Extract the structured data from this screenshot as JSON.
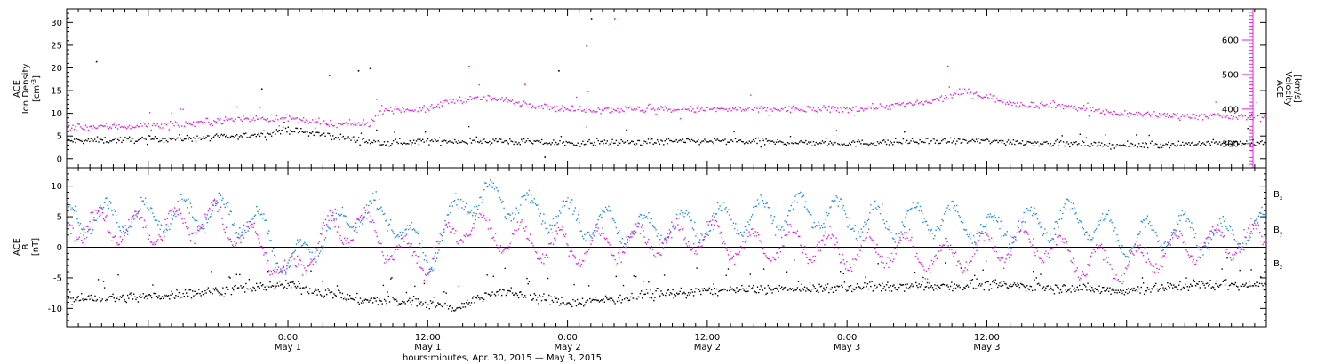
{
  "colors": {
    "black": "#000000",
    "magenta": "#e020e0",
    "blue": "#1e88e5"
  },
  "x_axis": {
    "ticks": [
      {
        "time": "0:00",
        "day": "May 1"
      },
      {
        "time": "12:00",
        "day": "May 1"
      },
      {
        "time": "0:00",
        "day": "May 2"
      },
      {
        "time": "12:00",
        "day": "May 2"
      },
      {
        "time": "0:00",
        "day": "May 3"
      },
      {
        "time": "12:00",
        "day": "May 3"
      }
    ],
    "title": "hours:minutes, Apr. 30, 2015 — May  3, 2015"
  },
  "chart_data": [
    {
      "type": "scatter",
      "panel": "top",
      "xlim_hours": [
        -19,
        84
      ],
      "x_unit": "hours since 0:00 May 1, 2015",
      "left_axis": {
        "label_line1": "ACE",
        "label_line2": "Ion Density",
        "label_line3": "[cm",
        "label_sup": "-3",
        "label_end": "]",
        "ylim": [
          -2,
          33
        ],
        "ticks": [
          "0",
          "5",
          "10",
          "15",
          "20",
          "25",
          "30"
        ]
      },
      "right_axis": {
        "label_line1": "ACE",
        "label_line2": "Velocity",
        "label_line3": "[km/s]",
        "ylim": [
          230,
          690
        ],
        "ticks": [
          "300",
          "400",
          "500",
          "600"
        ]
      },
      "series": [
        {
          "color": "black",
          "axis": "left",
          "anchors_x": [
            -19,
            -10,
            -4,
            0,
            4,
            8,
            12,
            18,
            24,
            36,
            48,
            56,
            60,
            66,
            72,
            78,
            84
          ],
          "anchors_y": [
            4,
            4.5,
            5,
            6.5,
            5,
            3.5,
            4,
            4,
            3.5,
            4,
            3.5,
            4,
            4,
            3.5,
            3,
            3.5,
            3.5
          ]
        },
        {
          "color": "magenta",
          "axis": "left",
          "anchors_x": [
            -19,
            -10,
            -4,
            0,
            4,
            7,
            8,
            12,
            14,
            17,
            24,
            36,
            48,
            55,
            58,
            63,
            66,
            70,
            72,
            78,
            84
          ],
          "anchors_y": [
            7,
            7.5,
            9,
            9,
            7.5,
            8,
            11,
            11,
            13,
            13.5,
            11,
            11,
            11,
            12.5,
            15,
            12,
            12,
            10.5,
            10,
            9.5,
            9.3
          ]
        }
      ],
      "outliers": [
        {
          "color": "black",
          "x": -16.5,
          "y": 21.5
        },
        {
          "color": "black",
          "x": -2.3,
          "y": 15.5
        },
        {
          "color": "black",
          "x": 6,
          "y": 19.5
        },
        {
          "color": "black",
          "x": 7,
          "y": 20
        },
        {
          "color": "black",
          "x": 3.5,
          "y": 18.5
        },
        {
          "color": "black",
          "x": 23.2,
          "y": 19.5
        },
        {
          "color": "black",
          "x": 26,
          "y": 31
        },
        {
          "color": "black",
          "x": 25.6,
          "y": 25
        },
        {
          "color": "black",
          "x": 22,
          "y": 0.5
        },
        {
          "color": "magenta",
          "x": 28,
          "y": 31
        },
        {
          "color": "magenta",
          "x": 15.5,
          "y": 20.5
        },
        {
          "color": "magenta",
          "x": 20.3,
          "y": 16.5
        },
        {
          "color": "magenta",
          "x": 56.6,
          "y": 20.5
        }
      ]
    },
    {
      "type": "scatter",
      "panel": "bottom",
      "xlim_hours": [
        -19,
        84
      ],
      "x_unit": "hours since 0:00 May 1, 2015",
      "left_axis": {
        "label_line1": "ACE",
        "label_line2": "B",
        "label_line3": "[nT]",
        "ylim": [
          -13,
          13
        ],
        "ticks": [
          "10",
          "5",
          "0",
          "-5",
          "-10"
        ]
      },
      "zero_line": true,
      "legend": [
        {
          "label": "B",
          "sub": "x",
          "color": "black"
        },
        {
          "label": "B",
          "sub": "y",
          "color": "blue"
        },
        {
          "label": "B",
          "sub": "z",
          "color": "magenta"
        }
      ],
      "series": [
        {
          "name": "Bx",
          "color": "black",
          "anchors_x": [
            -19,
            -12,
            -6,
            0,
            6,
            12,
            14,
            18,
            24,
            36,
            48,
            60,
            66,
            72,
            78,
            84
          ],
          "anchors_y": [
            -8.5,
            -8,
            -7,
            -6,
            -8.5,
            -9,
            -10,
            -7,
            -9,
            -7,
            -6.5,
            -6,
            -6.5,
            -7,
            -6,
            -6
          ]
        },
        {
          "name": "By",
          "color": "blue",
          "anchors_x": [
            -19,
            -12,
            -6,
            -2,
            0,
            3,
            6,
            9,
            12,
            15,
            18,
            24,
            30,
            36,
            40,
            44,
            48,
            52,
            56,
            60,
            64,
            68,
            72,
            76,
            80,
            84
          ],
          "anchors_y": [
            5,
            5,
            6,
            3,
            -3,
            2,
            6,
            5,
            -2,
            8,
            8,
            5,
            3,
            4,
            5,
            6,
            5,
            4,
            5,
            3,
            4,
            5,
            1,
            3,
            2,
            3
          ]
        },
        {
          "name": "Bz",
          "color": "magenta",
          "anchors_x": [
            -19,
            -12,
            -6,
            -2,
            0,
            3,
            6,
            9,
            12,
            15,
            18,
            24,
            30,
            36,
            40,
            44,
            48,
            52,
            56,
            60,
            64,
            68,
            72,
            76,
            80,
            84
          ],
          "anchors_y": [
            4,
            3,
            5,
            0,
            -5,
            2,
            4,
            0,
            -2,
            4,
            2,
            0,
            1,
            2,
            0,
            1,
            -1,
            0,
            -2,
            0,
            1,
            -2,
            -3,
            0,
            1,
            1.5
          ]
        }
      ]
    }
  ]
}
